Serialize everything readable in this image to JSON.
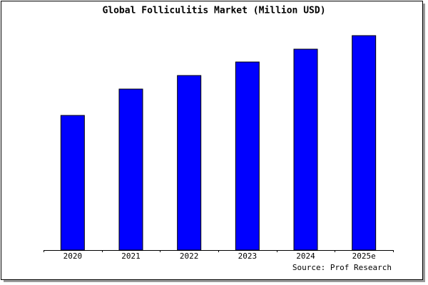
{
  "chart_data": {
    "type": "bar",
    "title": "Global Folliculitis Market (Million USD)",
    "categories": [
      "2020",
      "2021",
      "2022",
      "2023",
      "2024",
      "2025e"
    ],
    "values": [
      189,
      226,
      245,
      264,
      282,
      301
    ],
    "color": "#0000ff",
    "ylim": [
      0,
      303
    ],
    "source": "Source: Prof Research"
  }
}
